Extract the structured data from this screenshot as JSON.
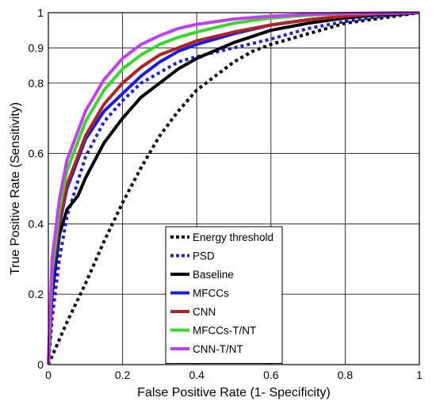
{
  "chart_data": {
    "type": "line",
    "title": "",
    "xlabel": "False Positive Rate (1- Specificity)",
    "ylabel": "True Positive Rate (Sensitivity)",
    "xlim": [
      0,
      1
    ],
    "ylim": [
      0,
      1
    ],
    "grid": true,
    "legend_position": "bottom-right",
    "x_ticks": [
      {
        "value": 0,
        "label": "0"
      },
      {
        "value": 0.2,
        "label": "0.2"
      },
      {
        "value": 0.4,
        "label": "0.4"
      },
      {
        "value": 0.6,
        "label": "0.6"
      },
      {
        "value": 0.8,
        "label": "0.8"
      },
      {
        "value": 1,
        "label": "1"
      }
    ],
    "y_ticks": [
      {
        "value": 0,
        "label": "0"
      },
      {
        "value": 0.2,
        "label": "0.2"
      },
      {
        "value": 0.4,
        "label": "0.4"
      },
      {
        "value": 0.6,
        "label": "0.6"
      },
      {
        "value": 0.8,
        "label": "0.8"
      },
      {
        "value": 0.9,
        "label": "0.9"
      },
      {
        "value": 1,
        "label": "1"
      }
    ],
    "series": [
      {
        "name": "Energy threshold",
        "color": "#000000",
        "dash": "dotted",
        "points": [
          [
            0,
            0
          ],
          [
            0.05,
            0.12
          ],
          [
            0.1,
            0.23
          ],
          [
            0.15,
            0.35
          ],
          [
            0.2,
            0.46
          ],
          [
            0.25,
            0.56
          ],
          [
            0.3,
            0.65
          ],
          [
            0.35,
            0.72
          ],
          [
            0.4,
            0.78
          ],
          [
            0.45,
            0.82
          ],
          [
            0.5,
            0.86
          ],
          [
            0.55,
            0.89
          ],
          [
            0.6,
            0.91
          ],
          [
            0.7,
            0.94
          ],
          [
            0.8,
            0.97
          ],
          [
            0.9,
            0.985
          ],
          [
            1,
            1
          ]
        ]
      },
      {
        "name": "PSD",
        "color": "#1f1fd6",
        "dash": "dotted",
        "points": [
          [
            0,
            0
          ],
          [
            0.01,
            0.13
          ],
          [
            0.03,
            0.3
          ],
          [
            0.05,
            0.42
          ],
          [
            0.1,
            0.59
          ],
          [
            0.15,
            0.69
          ],
          [
            0.2,
            0.75
          ],
          [
            0.25,
            0.8
          ],
          [
            0.3,
            0.83
          ],
          [
            0.35,
            0.86
          ],
          [
            0.4,
            0.875
          ],
          [
            0.5,
            0.9
          ],
          [
            0.6,
            0.925
          ],
          [
            0.7,
            0.955
          ],
          [
            0.8,
            0.975
          ],
          [
            0.9,
            0.99
          ],
          [
            1,
            1
          ]
        ]
      },
      {
        "name": "Baseline",
        "color": "#000000",
        "dash": "solid",
        "points": [
          [
            0,
            0
          ],
          [
            0.01,
            0.2
          ],
          [
            0.03,
            0.37
          ],
          [
            0.05,
            0.44
          ],
          [
            0.08,
            0.48
          ],
          [
            0.1,
            0.53
          ],
          [
            0.15,
            0.63
          ],
          [
            0.2,
            0.7
          ],
          [
            0.25,
            0.76
          ],
          [
            0.3,
            0.8
          ],
          [
            0.35,
            0.84
          ],
          [
            0.4,
            0.87
          ],
          [
            0.5,
            0.915
          ],
          [
            0.6,
            0.95
          ],
          [
            0.7,
            0.97
          ],
          [
            0.8,
            0.985
          ],
          [
            0.9,
            0.995
          ],
          [
            1,
            1
          ]
        ]
      },
      {
        "name": "MFCCs",
        "color": "#1a1ae6",
        "dash": "solid",
        "points": [
          [
            0,
            0
          ],
          [
            0.01,
            0.22
          ],
          [
            0.03,
            0.4
          ],
          [
            0.05,
            0.5
          ],
          [
            0.1,
            0.64
          ],
          [
            0.15,
            0.72
          ],
          [
            0.2,
            0.77
          ],
          [
            0.25,
            0.82
          ],
          [
            0.3,
            0.86
          ],
          [
            0.35,
            0.89
          ],
          [
            0.4,
            0.91
          ],
          [
            0.5,
            0.94
          ],
          [
            0.6,
            0.965
          ],
          [
            0.7,
            0.98
          ],
          [
            0.8,
            0.99
          ],
          [
            0.9,
            0.997
          ],
          [
            1,
            1
          ]
        ]
      },
      {
        "name": "CNN",
        "color": "#b22222",
        "dash": "solid",
        "points": [
          [
            0,
            0
          ],
          [
            0.01,
            0.26
          ],
          [
            0.03,
            0.41
          ],
          [
            0.05,
            0.51
          ],
          [
            0.1,
            0.65
          ],
          [
            0.15,
            0.74
          ],
          [
            0.2,
            0.8
          ],
          [
            0.25,
            0.845
          ],
          [
            0.3,
            0.88
          ],
          [
            0.35,
            0.9
          ],
          [
            0.4,
            0.92
          ],
          [
            0.5,
            0.945
          ],
          [
            0.6,
            0.965
          ],
          [
            0.7,
            0.98
          ],
          [
            0.8,
            0.99
          ],
          [
            0.9,
            0.997
          ],
          [
            1,
            1
          ]
        ]
      },
      {
        "name": "MFCCs-T/NT",
        "color": "#3ad62a",
        "dash": "solid",
        "points": [
          [
            0,
            0
          ],
          [
            0.01,
            0.27
          ],
          [
            0.03,
            0.44
          ],
          [
            0.05,
            0.55
          ],
          [
            0.1,
            0.69
          ],
          [
            0.15,
            0.78
          ],
          [
            0.2,
            0.84
          ],
          [
            0.25,
            0.88
          ],
          [
            0.3,
            0.91
          ],
          [
            0.35,
            0.93
          ],
          [
            0.4,
            0.945
          ],
          [
            0.5,
            0.97
          ],
          [
            0.6,
            0.985
          ],
          [
            0.7,
            0.993
          ],
          [
            0.8,
            0.997
          ],
          [
            0.9,
            0.999
          ],
          [
            1,
            1
          ]
        ]
      },
      {
        "name": "CNN-T/NT",
        "color": "#c040f0",
        "dash": "solid",
        "points": [
          [
            0,
            0
          ],
          [
            0.01,
            0.3
          ],
          [
            0.03,
            0.47
          ],
          [
            0.05,
            0.58
          ],
          [
            0.1,
            0.72
          ],
          [
            0.15,
            0.81
          ],
          [
            0.2,
            0.87
          ],
          [
            0.25,
            0.91
          ],
          [
            0.3,
            0.935
          ],
          [
            0.35,
            0.955
          ],
          [
            0.4,
            0.967
          ],
          [
            0.5,
            0.982
          ],
          [
            0.6,
            0.99
          ],
          [
            0.7,
            0.995
          ],
          [
            0.8,
            0.998
          ],
          [
            0.9,
            0.999
          ],
          [
            1,
            1
          ]
        ]
      }
    ]
  }
}
